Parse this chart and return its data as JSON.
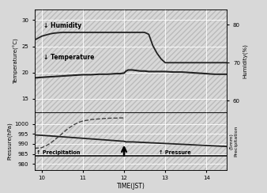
{
  "xlim": [
    9.83,
    14.5
  ],
  "temp_ylim": [
    12.5,
    32
  ],
  "pressure_ylim": [
    977,
    1006
  ],
  "humidity_ylim": [
    57,
    84
  ],
  "xticks": [
    10,
    11,
    12,
    13,
    14
  ],
  "temp_yticks": [
    15,
    20,
    25,
    30
  ],
  "pressure_yticks": [
    980,
    985,
    990,
    995,
    1000
  ],
  "humidity_yticks": [
    60,
    70,
    80
  ],
  "xlabel": "TIME(JST)",
  "ylabel_left_top": "Temperature(°C)",
  "ylabel_left_bottom": "Pressure(hPa)",
  "ylabel_right_top": "Humidity(%)",
  "ylabel_right_bottom": "(5mm)\nPrecipitation",
  "bg_color": "#d8d8d8",
  "grid_color": "#ffffff",
  "humidity_label": "↓ Humidity",
  "temperature_label": "↓ Temperature",
  "precipitation_label": "↑ Precipitation",
  "pressure_label": "↑ Pressure",
  "humidity_x": [
    9.83,
    10.0,
    10.1,
    10.2,
    10.3,
    10.5,
    10.7,
    10.9,
    11.0,
    11.2,
    11.4,
    11.6,
    11.8,
    12.0,
    12.1,
    12.2,
    12.3,
    12.4,
    12.5,
    12.6,
    12.65,
    12.7,
    12.8,
    12.9,
    13.0,
    13.1,
    13.2,
    13.4,
    13.6,
    13.8,
    14.0,
    14.2,
    14.4,
    14.5
  ],
  "humidity_y": [
    76.0,
    77.0,
    77.3,
    77.6,
    77.8,
    78.0,
    78.0,
    78.0,
    78.0,
    78.0,
    78.0,
    78.0,
    78.0,
    78.0,
    78.0,
    78.0,
    78.0,
    78.0,
    78.0,
    77.5,
    76.0,
    74.5,
    72.5,
    71.0,
    70.0,
    70.0,
    70.0,
    70.0,
    70.0,
    70.0,
    70.0,
    70.0,
    70.0,
    70.0
  ],
  "temperature_x": [
    9.83,
    10.0,
    10.2,
    10.4,
    10.6,
    10.8,
    11.0,
    11.2,
    11.4,
    11.6,
    11.8,
    11.9,
    12.0,
    12.05,
    12.1,
    12.2,
    12.3,
    12.4,
    12.5,
    12.6,
    12.8,
    13.0,
    13.2,
    13.4,
    13.6,
    13.8,
    14.0,
    14.2,
    14.4,
    14.5
  ],
  "temperature_y": [
    19.0,
    19.1,
    19.2,
    19.3,
    19.4,
    19.5,
    19.6,
    19.6,
    19.7,
    19.7,
    19.8,
    19.8,
    19.9,
    20.3,
    20.5,
    20.5,
    20.4,
    20.3,
    20.3,
    20.2,
    20.2,
    20.2,
    20.1,
    20.1,
    20.0,
    19.9,
    19.8,
    19.7,
    19.7,
    19.7
  ],
  "pressure_smooth_x": [
    9.83,
    10.0,
    10.2,
    10.4,
    10.6,
    10.8,
    11.0,
    11.2,
    11.4,
    11.6,
    11.8,
    12.0,
    12.05,
    12.2,
    12.4,
    12.6,
    12.8,
    13.0,
    13.2,
    13.4,
    13.6,
    13.8,
    14.0,
    14.2,
    14.4,
    14.5
  ],
  "pressure_smooth_y": [
    994.5,
    994.3,
    994.0,
    993.7,
    993.4,
    993.1,
    992.8,
    992.5,
    992.2,
    991.9,
    991.6,
    991.3,
    991.0,
    991.0,
    990.8,
    990.6,
    990.4,
    990.2,
    990.0,
    989.8,
    989.6,
    989.4,
    989.2,
    989.0,
    988.8,
    988.7
  ],
  "pressure_step_x": [
    9.83,
    9.9,
    10.0,
    10.1,
    10.2,
    10.3,
    10.4,
    10.5,
    10.6,
    10.7,
    10.8,
    10.9,
    11.0,
    11.1,
    11.2,
    11.4,
    11.5,
    11.6,
    11.7,
    11.8,
    11.9,
    12.0
  ],
  "pressure_step_y": [
    987.8,
    987.9,
    988.1,
    989.0,
    990.2,
    991.8,
    993.5,
    995.2,
    997.0,
    998.5,
    999.8,
    1000.8,
    1001.5,
    1001.8,
    1002.2,
    1002.5,
    1002.7,
    1002.8,
    1002.9,
    1002.9,
    1003.0,
    1003.0
  ],
  "precipitation_x": [
    9.83,
    10.0,
    10.5,
    11.0,
    11.5,
    12.0,
    12.5,
    13.0,
    13.5,
    14.0,
    14.5
  ],
  "precipitation_y": [
    984.2,
    984.2,
    984.2,
    984.2,
    984.2,
    984.2,
    984.2,
    984.2,
    984.2,
    984.2,
    984.2
  ],
  "line_color": "#222222",
  "dashed_color": "#444444"
}
